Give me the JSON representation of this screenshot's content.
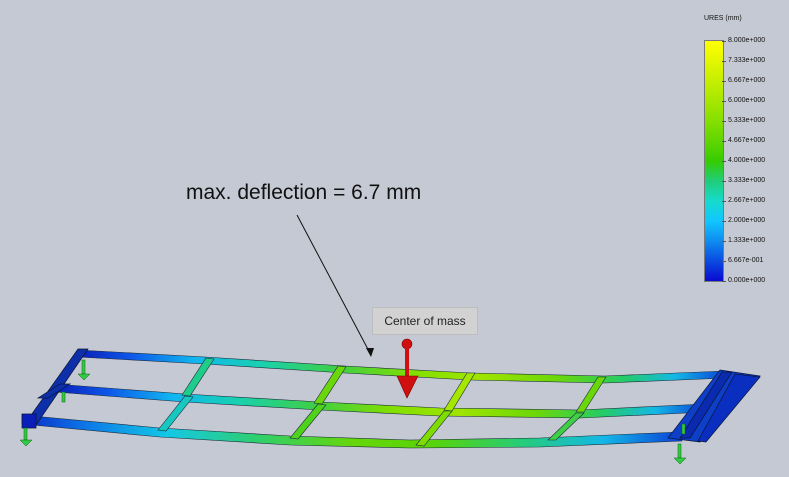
{
  "annotation": {
    "text": "max. deflection = 6.7 mm"
  },
  "com_label": {
    "text": "Center of mass"
  },
  "legend": {
    "title": "URES (mm)",
    "values": [
      "8.000e+000",
      "7.333e+000",
      "6.667e+000",
      "6.000e+000",
      "5.333e+000",
      "4.667e+000",
      "4.000e+000",
      "3.333e+000",
      "2.667e+000",
      "2.000e+000",
      "1.333e+000",
      "6.667e-001",
      "0.000e+000"
    ],
    "colors": [
      "#ffff00",
      "#e3f700",
      "#c5ef00",
      "#a6e700",
      "#84df00",
      "#5fd600",
      "#36cc00",
      "#1fcd7a",
      "#16dbcc",
      "#11c6ff",
      "#0e8cf0",
      "#0a4be0",
      "#0a0ad0"
    ]
  },
  "scene": {
    "frame_color": "#0d2fa8",
    "arrow_color": "#d01010",
    "support_color": "#2ecc40"
  }
}
